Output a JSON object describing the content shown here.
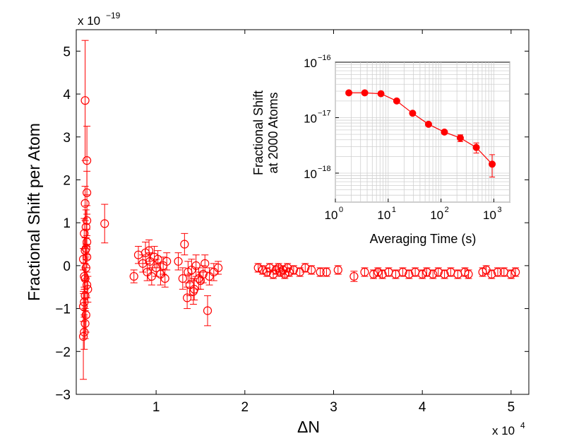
{
  "colors": {
    "series": "#ff0000",
    "axis": "#000000",
    "grid": "#d0d0d0"
  },
  "chart_data": [
    {
      "type": "scatter",
      "title": "",
      "xlabel": "ΔN",
      "ylabel": "Fractional Shift per Atom",
      "x_multiplier": "x 10",
      "x_multiplier_exp": "4",
      "y_multiplier": "x 10",
      "y_multiplier_exp": "−19",
      "xlim": [
        0.1,
        5.2
      ],
      "ylim": [
        -3,
        5.5
      ],
      "x_ticks": [
        1,
        2,
        3,
        4,
        5
      ],
      "x_tick_labels": [
        "1",
        "2",
        "3",
        "4",
        "5"
      ],
      "y_ticks": [
        -3,
        -2,
        -1,
        0,
        1,
        2,
        3,
        4,
        5
      ],
      "y_tick_labels": [
        "−3",
        "−2",
        "−1",
        "0",
        "1",
        "2",
        "3",
        "4",
        "5"
      ],
      "marker": "open-circle",
      "series": [
        {
          "name": "Fractional shift per atom",
          "points": [
            [
              0.2,
              3.85,
              1.4
            ],
            [
              0.22,
              2.45,
              0.8
            ],
            [
              0.22,
              1.7,
              0.5
            ],
            [
              0.2,
              1.45,
              0.4
            ],
            [
              0.21,
              0.9,
              0.4
            ],
            [
              0.19,
              0.75,
              0.35
            ],
            [
              0.22,
              0.55,
              0.3
            ],
            [
              0.2,
              0.35,
              0.3
            ],
            [
              0.18,
              0.15,
              0.25
            ],
            [
              0.21,
              -0.05,
              0.25
            ],
            [
              0.19,
              -0.25,
              0.3
            ],
            [
              0.22,
              -0.45,
              0.3
            ],
            [
              0.2,
              -0.7,
              0.35
            ],
            [
              0.18,
              -0.95,
              0.35
            ],
            [
              0.21,
              -1.15,
              0.4
            ],
            [
              0.2,
              -1.35,
              0.35
            ],
            [
              0.19,
              -1.55,
              0.4
            ],
            [
              0.18,
              -1.65,
              1.0
            ],
            [
              0.22,
              0.2,
              0.25
            ],
            [
              0.2,
              -0.3,
              0.25
            ],
            [
              0.21,
              0.4,
              0.25
            ],
            [
              0.19,
              -0.85,
              0.35
            ],
            [
              0.22,
              1.05,
              0.35
            ],
            [
              0.23,
              -0.55,
              0.3
            ],
            [
              0.42,
              0.98,
              0.45
            ],
            [
              0.8,
              0.25,
              0.2
            ],
            [
              0.85,
              0.05,
              0.2
            ],
            [
              0.88,
              0.3,
              0.25
            ],
            [
              0.9,
              -0.15,
              0.2
            ],
            [
              0.93,
              0.1,
              0.2
            ],
            [
              0.95,
              -0.25,
              0.2
            ],
            [
              0.98,
              0.2,
              0.25
            ],
            [
              1.0,
              -0.05,
              0.2
            ],
            [
              1.02,
              0.15,
              0.2
            ],
            [
              1.05,
              -0.2,
              0.25
            ],
            [
              1.08,
              0.0,
              0.2
            ],
            [
              1.1,
              -0.3,
              0.2
            ],
            [
              0.75,
              -0.25,
              0.15
            ],
            [
              0.92,
              0.35,
              0.25
            ],
            [
              1.12,
              0.1,
              0.2
            ],
            [
              1.25,
              0.1,
              0.2
            ],
            [
              1.3,
              -0.3,
              0.25
            ],
            [
              1.32,
              0.5,
              0.25
            ],
            [
              1.35,
              -0.75,
              0.25
            ],
            [
              1.38,
              -0.45,
              0.25
            ],
            [
              1.4,
              -0.1,
              0.25
            ],
            [
              1.43,
              -0.55,
              0.25
            ],
            [
              1.45,
              0.0,
              0.25
            ],
            [
              1.48,
              -0.3,
              0.25
            ],
            [
              1.5,
              -0.35,
              0.2
            ],
            [
              1.53,
              -0.2,
              0.2
            ],
            [
              1.55,
              0.05,
              0.2
            ],
            [
              1.58,
              -1.05,
              0.35
            ],
            [
              1.6,
              -0.25,
              0.2
            ],
            [
              1.65,
              -0.15,
              0.2
            ],
            [
              1.7,
              -0.05,
              0.15
            ],
            [
              1.42,
              -0.6,
              0.3
            ],
            [
              1.36,
              -0.15,
              0.25
            ],
            [
              2.15,
              -0.05,
              0.1
            ],
            [
              2.2,
              -0.1,
              0.1
            ],
            [
              2.25,
              -0.15,
              0.1
            ],
            [
              2.28,
              -0.05,
              0.1
            ],
            [
              2.32,
              -0.2,
              0.1
            ],
            [
              2.35,
              -0.1,
              0.1
            ],
            [
              2.38,
              -0.05,
              0.1
            ],
            [
              2.4,
              -0.15,
              0.1
            ],
            [
              2.43,
              -0.1,
              0.1
            ],
            [
              2.45,
              -0.2,
              0.1
            ],
            [
              2.48,
              -0.05,
              0.1
            ],
            [
              2.5,
              -0.15,
              0.1
            ],
            [
              2.55,
              -0.1,
              0.1
            ],
            [
              2.62,
              -0.15,
              0.1
            ],
            [
              2.68,
              -0.05,
              0.1
            ],
            [
              2.75,
              -0.1,
              0.1
            ],
            [
              2.85,
              -0.15,
              0.1
            ],
            [
              2.92,
              -0.15,
              0.1
            ],
            [
              3.05,
              -0.1,
              0.1
            ],
            [
              3.23,
              -0.25,
              0.12
            ],
            [
              3.35,
              -0.15,
              0.1
            ],
            [
              3.45,
              -0.2,
              0.1
            ],
            [
              3.5,
              -0.15,
              0.1
            ],
            [
              3.55,
              -0.2,
              0.1
            ],
            [
              3.62,
              -0.15,
              0.1
            ],
            [
              3.7,
              -0.2,
              0.1
            ],
            [
              3.78,
              -0.15,
              0.1
            ],
            [
              3.85,
              -0.2,
              0.1
            ],
            [
              3.92,
              -0.15,
              0.1
            ],
            [
              4.0,
              -0.2,
              0.1
            ],
            [
              4.05,
              -0.15,
              0.1
            ],
            [
              4.12,
              -0.2,
              0.1
            ],
            [
              4.18,
              -0.15,
              0.1
            ],
            [
              4.25,
              -0.2,
              0.1
            ],
            [
              4.32,
              -0.15,
              0.1
            ],
            [
              4.4,
              -0.2,
              0.1
            ],
            [
              4.48,
              -0.15,
              0.1
            ],
            [
              4.52,
              -0.2,
              0.1
            ],
            [
              4.68,
              -0.15,
              0.1
            ],
            [
              4.72,
              -0.1,
              0.1
            ],
            [
              4.78,
              -0.2,
              0.1
            ],
            [
              4.85,
              -0.15,
              0.1
            ],
            [
              4.92,
              -0.15,
              0.1
            ],
            [
              5.0,
              -0.2,
              0.1
            ],
            [
              5.05,
              -0.15,
              0.1
            ]
          ]
        }
      ]
    },
    {
      "type": "line",
      "title": "",
      "xlabel": "Averaging Time (s)",
      "ylabel_lines": [
        "Fractional Shift",
        "at 2000 Atoms"
      ],
      "x_scale": "log",
      "y_scale": "log",
      "xlim": [
        1,
        2000
      ],
      "ylim": [
        3e-19,
        1e-16
      ],
      "x_tick_labels": [
        {
          "base": "10",
          "exp": "0"
        },
        {
          "base": "10",
          "exp": "1"
        },
        {
          "base": "10",
          "exp": "2"
        },
        {
          "base": "10",
          "exp": "3"
        }
      ],
      "y_tick_labels": [
        {
          "base": "10",
          "exp": "−16"
        },
        {
          "base": "10",
          "exp": "−17"
        },
        {
          "base": "10",
          "exp": "−18"
        }
      ],
      "grid": true,
      "marker": "filled-circle",
      "series": [
        {
          "name": "Fractional shift at 2000 atoms",
          "x": [
            1.8,
            3.6,
            7.3,
            14.5,
            29,
            58,
            116,
            232,
            465,
            930
          ],
          "y": [
            2.8e-17,
            2.8e-17,
            2.7e-17,
            2e-17,
            1.2e-17,
            7.6e-18,
            5.5e-18,
            4.3e-18,
            2.9e-18,
            1.45e-18
          ],
          "err_low": [
            0,
            0,
            0,
            0,
            0,
            0,
            0,
            6e-19,
            6e-19,
            6e-19
          ],
          "err_high": [
            0,
            0,
            0,
            0,
            0,
            0,
            0,
            6e-19,
            6e-19,
            7e-19
          ]
        }
      ]
    }
  ]
}
